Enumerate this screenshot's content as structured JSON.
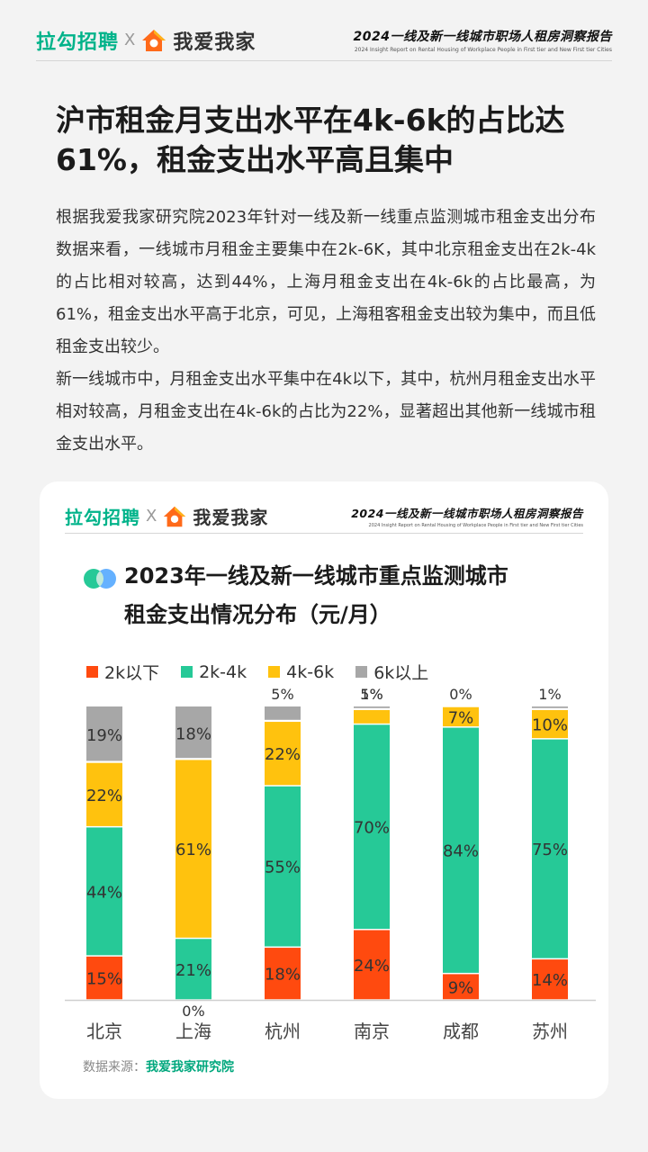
{
  "header": {
    "brand_left": "拉勾招聘",
    "brand_x": "X",
    "brand_right": "我爱我家",
    "report_title": "2024一线及新一线城市职场人租房洞察报告",
    "report_subtitle": "2024 Insight Report on Rental Housing of Workplace People in First tier and New First tier Cities"
  },
  "headline": "沪市租金月支出水平在4k-6k的占比达61%，租金支出水平高且集中",
  "body": {
    "p1": "根据我爱我家研究院2023年针对一线及新一线重点监测城市租金支出分布数据来看，一线城市月租金主要集中在2k-6K，其中北京租金支出在2k-4k的占比相对较高，达到44%，上海月租金支出在4k-6k的占比最高，为61%，租金支出水平高于北京，可见，上海租客租金支出较为集中，而且低租金支出较少。",
    "p2": "新一线城市中，月租金支出水平集中在4k以下，其中，杭州月租金支出水平相对较高，月租金支出在4k-6k的占比为22%，显著超出其他新一线城市租金支出水平。"
  },
  "source": {
    "label": "数据来源：",
    "name": "我爱我家研究院"
  },
  "chart_data": {
    "type": "bar",
    "stacked": true,
    "title": "2023年一线及新一线城市重点监测城市租金支出情况分布（元/月）",
    "title_line1": "2023年一线及新一线城市重点监测城市",
    "title_line2": "租金支出情况分布（元/月）",
    "categories": [
      "北京",
      "上海",
      "杭州",
      "南京",
      "成都",
      "苏州"
    ],
    "unit": "%",
    "ylim": [
      0,
      100
    ],
    "legend_position": "top-left",
    "series": [
      {
        "name": "2k以下",
        "color": "#ff4a0f",
        "values": [
          15,
          0,
          18,
          24,
          9,
          14
        ]
      },
      {
        "name": "2k-4k",
        "color": "#26c997",
        "values": [
          44,
          21,
          55,
          70,
          84,
          75
        ]
      },
      {
        "name": "4k-6k",
        "color": "#ffc20e",
        "values": [
          22,
          61,
          22,
          5,
          7,
          10
        ]
      },
      {
        "name": "6k以上",
        "color": "#a7a7a7",
        "values": [
          19,
          18,
          5,
          1,
          0,
          1
        ]
      }
    ]
  }
}
